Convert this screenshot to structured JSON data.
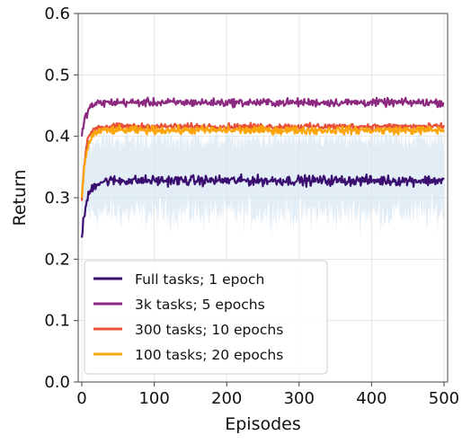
{
  "chart_data": {
    "type": "line",
    "title": "",
    "xlabel": "Episodes",
    "ylabel": "Return",
    "xlim": [
      -5,
      505
    ],
    "ylim": [
      0.0,
      0.6
    ],
    "xticks": [
      "0",
      "100",
      "200",
      "300",
      "400",
      "500"
    ],
    "yticks": [
      "0.0",
      "0.1",
      "0.2",
      "0.3",
      "0.4",
      "0.5",
      "0.6"
    ],
    "grid": true,
    "legend_position": "lower-left",
    "band": {
      "color": "#d6e6f2",
      "lower": {
        "start": 0.27,
        "plateau": 0.275,
        "noise": 0.018
      },
      "upper": {
        "start": 0.33,
        "plateau": 0.395,
        "noise": 0.012
      }
    },
    "series": [
      {
        "name": "Full tasks; 1 epoch",
        "color": "#3b0f70",
        "start": 0.235,
        "plateau": 0.328,
        "rise": 7,
        "noise": 0.005
      },
      {
        "name": "3k tasks; 5 epochs",
        "color": "#8c2981",
        "start": 0.4,
        "plateau": 0.455,
        "rise": 6,
        "noise": 0.004
      },
      {
        "name": "300 tasks; 10 epochs",
        "color": "#e8503a",
        "start": 0.295,
        "plateau": 0.416,
        "rise": 5,
        "noise": 0.003
      },
      {
        "name": "100 tasks; 20 epochs",
        "color": "#fca50a",
        "start": 0.3,
        "plateau": 0.41,
        "rise": 6,
        "noise": 0.004
      }
    ]
  }
}
